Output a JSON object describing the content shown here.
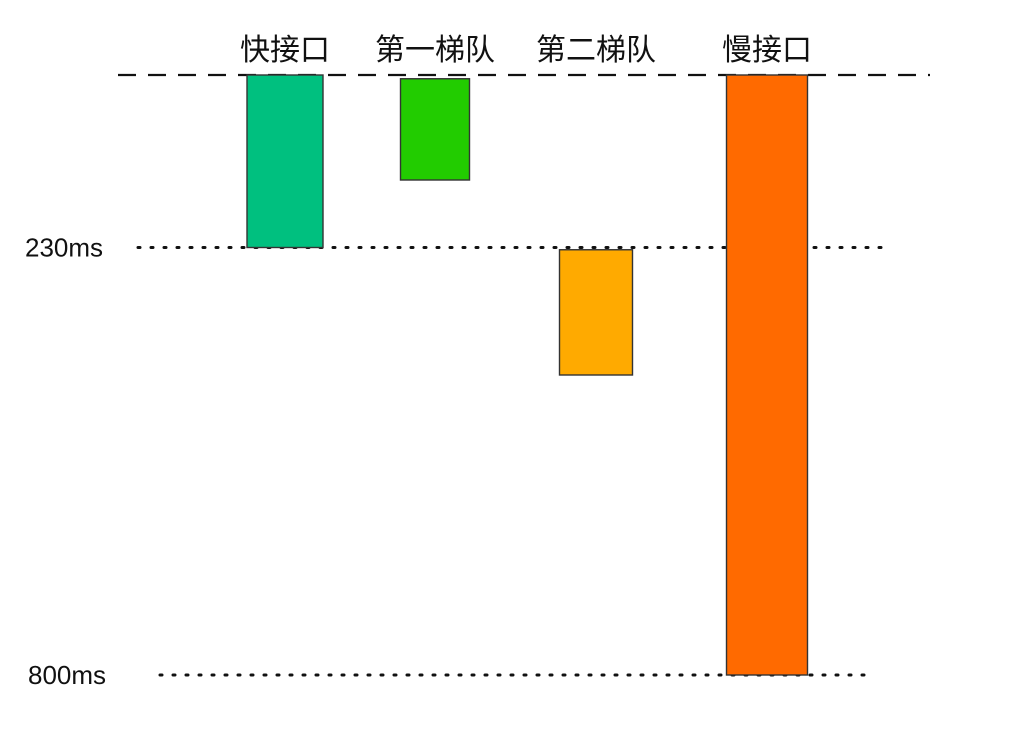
{
  "chart_data": {
    "type": "bar",
    "orientation": "vertical-floating",
    "categories": [
      "快接口",
      "第一梯队",
      "第二梯队",
      "慢接口"
    ],
    "series": [
      {
        "values": [
          {
            "start": 0,
            "end": 230
          },
          {
            "start": 5,
            "end": 140
          },
          {
            "start": 233,
            "end": 400
          },
          {
            "start": 0,
            "end": 800
          }
        ]
      }
    ],
    "colors": [
      "#00c07f",
      "#22cc00",
      "#ffaa00",
      "#ff6a00"
    ],
    "ylim": [
      0,
      800
    ],
    "y_axis_inverted": true,
    "reference_lines": [
      {
        "value": 0,
        "style": "dashed"
      },
      {
        "value": 230,
        "label": "230ms",
        "style": "dotted"
      },
      {
        "value": 800,
        "label": "800ms",
        "style": "dotted"
      }
    ],
    "title": "",
    "xlabel": "",
    "ylabel": "",
    "grid": false,
    "legend": "none"
  }
}
